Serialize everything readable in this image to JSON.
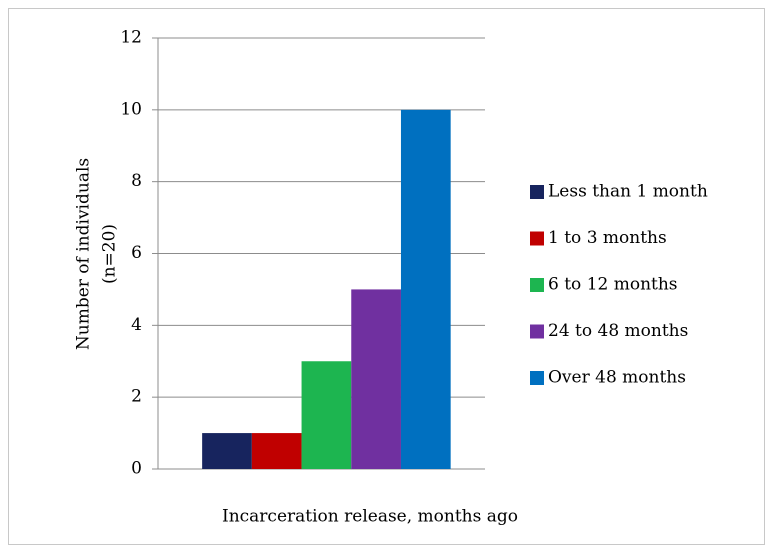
{
  "chart_data": {
    "type": "bar",
    "xlabel": "Incarceration release, months ago",
    "ylabel": [
      "Number of individuals",
      "(n=20)"
    ],
    "categories": [
      null
    ],
    "series": [
      {
        "name": "Less than 1 month",
        "color": "#17245e",
        "values": [
          1
        ]
      },
      {
        "name": "1 to 3 months",
        "color": "#c00000",
        "values": [
          1
        ]
      },
      {
        "name": "6 to 12 months",
        "color": "#1db550",
        "values": [
          3
        ]
      },
      {
        "name": "24 to 48 months",
        "color": "#7030a0",
        "values": [
          5
        ]
      },
      {
        "name": "Over 48 months",
        "color": "#0070c0",
        "values": [
          10
        ]
      }
    ],
    "ylim": [
      0,
      12
    ],
    "yticks": [
      0,
      2,
      4,
      6,
      8,
      10,
      12
    ],
    "grid": true,
    "legend": "right"
  }
}
